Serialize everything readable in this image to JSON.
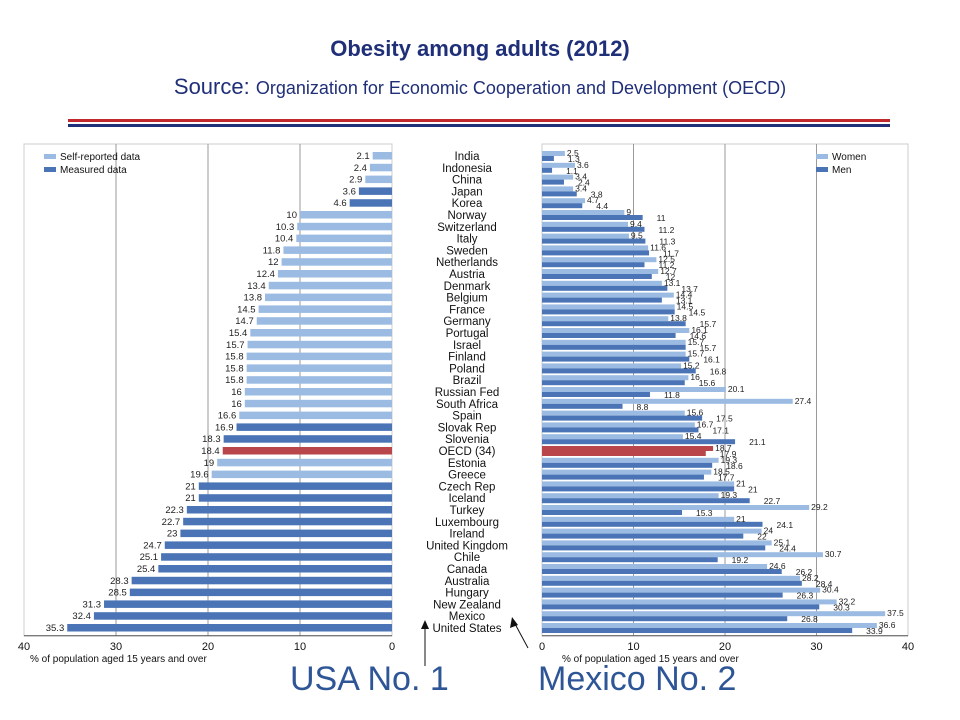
{
  "title": "Obesity among adults (2012)",
  "subtitle": {
    "prefix": "Source: ",
    "text": "Organization for Economic Cooperation and Development (OECD)"
  },
  "callouts": {
    "usa": "USA No. 1",
    "mexico": "Mexico No. 2"
  },
  "colors": {
    "self_reported": "#9bbbe2",
    "measured": "#4a74b6",
    "women": "#9bbbe2",
    "men": "#4a74b6",
    "oecd_highlight": "#b8464a",
    "title": "#1f2f78",
    "rule_red": "#c0282d",
    "rule_blue": "#1f2f78",
    "callout": "#2e5596"
  },
  "chart_data": [
    {
      "type": "bar",
      "orientation": "horizontal",
      "direction": "right-to-left",
      "legend": {
        "position": "top-left",
        "entries": [
          "Self-reported data",
          "Measured data"
        ]
      },
      "xlabel": "% of population aged 15 years and over",
      "xlim": [
        0,
        40
      ],
      "xticks": [
        "40",
        "30",
        "20",
        "10",
        "0"
      ],
      "grid": true,
      "categories": [
        "India",
        "Indonesia",
        "China",
        "Japan",
        "Korea",
        "Norway",
        "Switzerland",
        "Italy",
        "Sweden",
        "Netherlands",
        "Austria",
        "Denmark",
        "Belgium",
        "France",
        "Germany",
        "Portugal",
        "Israel",
        "Finland",
        "Poland",
        "Brazil",
        "Russian Fed",
        "South Africa",
        "Spain",
        "Slovak Rep",
        "Slovenia",
        "OECD (34)",
        "Estonia",
        "Greece",
        "Czech Rep",
        "Iceland",
        "Turkey",
        "Luxembourg",
        "Ireland",
        "United Kingdom",
        "Chile",
        "Canada",
        "Australia",
        "Hungary",
        "New Zealand",
        "Mexico",
        "United States"
      ],
      "values": [
        2.1,
        2.4,
        2.9,
        3.6,
        4.6,
        10,
        10.3,
        10.4,
        11.8,
        12,
        12.4,
        13.4,
        13.8,
        14.5,
        14.7,
        15.4,
        15.7,
        15.8,
        15.8,
        15.8,
        16,
        16,
        16.6,
        16.9,
        18.3,
        18.4,
        19,
        19.6,
        21,
        21,
        22.3,
        22.7,
        23,
        24.7,
        25.1,
        25.4,
        28.3,
        28.5,
        31.3,
        32.4,
        35.3
      ],
      "data_type": [
        "Self-reported data",
        "Self-reported data",
        "Self-reported data",
        "Measured data",
        "Measured data",
        "Self-reported data",
        "Self-reported data",
        "Self-reported data",
        "Self-reported data",
        "Self-reported data",
        "Self-reported data",
        "Self-reported data",
        "Self-reported data",
        "Self-reported data",
        "Self-reported data",
        "Self-reported data",
        "Self-reported data",
        "Self-reported data",
        "Self-reported data",
        "Self-reported data",
        "Self-reported data",
        "Self-reported data",
        "Self-reported data",
        "Measured data",
        "Measured data",
        "OECD",
        "Self-reported data",
        "Self-reported data",
        "Measured data",
        "Measured data",
        "Measured data",
        "Measured data",
        "Measured data",
        "Measured data",
        "Measured data",
        "Measured data",
        "Measured data",
        "Measured data",
        "Measured data",
        "Measured data",
        "Measured data"
      ]
    },
    {
      "type": "bar",
      "orientation": "horizontal",
      "legend": {
        "position": "top-right",
        "entries": [
          "Women",
          "Men"
        ]
      },
      "xlabel": "% of population aged 15 years and over",
      "xlim": [
        0,
        40
      ],
      "xticks": [
        "0",
        "10",
        "20",
        "30",
        "40"
      ],
      "grid": true,
      "categories": [
        "India",
        "Indonesia",
        "China",
        "Japan",
        "Korea",
        "Norway",
        "Switzerland",
        "Italy",
        "Sweden",
        "Netherlands",
        "Austria",
        "Denmark",
        "Belgium",
        "France",
        "Germany",
        "Portugal",
        "Israel",
        "Finland",
        "Poland",
        "Brazil",
        "Russian Fed",
        "South Africa",
        "Spain",
        "Slovak Rep",
        "Slovenia",
        "OECD (34)",
        "Estonia",
        "Greece",
        "Czech Rep",
        "Iceland",
        "Turkey",
        "Luxembourg",
        "Ireland",
        "United Kingdom",
        "Chile",
        "Canada",
        "Australia",
        "Hungary",
        "New Zealand",
        "Mexico",
        "United States"
      ],
      "series": [
        {
          "name": "Women",
          "values": [
            2.5,
            3.6,
            3.4,
            3.4,
            4.7,
            9,
            9.4,
            9.5,
            11.6,
            12.5,
            12.7,
            13.1,
            14.4,
            14.5,
            13.8,
            16.1,
            15.7,
            15.7,
            15.2,
            16,
            20.1,
            27.4,
            15.6,
            16.7,
            15.4,
            18.7,
            19.3,
            18.5,
            21,
            19.3,
            29.2,
            21,
            24,
            25.1,
            30.7,
            24.6,
            28.2,
            30.4,
            32.2,
            37.5,
            36.6
          ],
          "labels": [
            "2.5",
            "3.6",
            "3.4",
            "3.4",
            "4.7",
            "9",
            "9.4",
            "9.5",
            "11.6",
            "12.5",
            "12.7",
            "13.1",
            "14.4",
            "14.5",
            "13.8",
            "16.1",
            "15.7",
            "15.7",
            "15.2",
            "16",
            "20.1",
            "27.4",
            "15.6",
            "16.7",
            "15.4",
            "18.7",
            "19.3",
            "18.5",
            "21",
            "19.3",
            "29.2",
            "21",
            "24",
            "25.1",
            "30.7",
            "24.6",
            "28.2",
            "30.4",
            "32.2",
            "37.5",
            "36.6"
          ]
        },
        {
          "name": "Men",
          "values": [
            1.3,
            1.1,
            2.4,
            3.8,
            4.4,
            11,
            11.2,
            11.3,
            11.7,
            11.2,
            12,
            13.7,
            13.1,
            14.5,
            15.7,
            14.6,
            15.7,
            16.1,
            16.8,
            15.6,
            11.8,
            8.8,
            17.5,
            17.1,
            21.1,
            17.9,
            18.6,
            17.7,
            21,
            22.7,
            15.3,
            24.1,
            22,
            24.4,
            19.2,
            26.2,
            28.4,
            26.3,
            30.3,
            26.8,
            33.9
          ],
          "labels": [
            "1.3",
            "1.1",
            "2.4",
            "3.8",
            "4.4",
            "11",
            "11.2",
            "11.3",
            "11.7",
            "11.2",
            "12",
            "13.7",
            "13.1",
            "14.5",
            "15.7",
            "14.6",
            "15.7",
            "16.1",
            "16.8",
            "15.6",
            "11.8",
            "8.8",
            "17.5",
            "17.1",
            "21.1",
            "17.9",
            "18.6",
            "17.7",
            "21",
            "22.7",
            "15.3",
            "24.1",
            "22",
            "24.4",
            "19.2",
            "26.2",
            "28.4",
            "26.3",
            "30.3",
            "26.8",
            "33.9"
          ]
        }
      ]
    }
  ]
}
